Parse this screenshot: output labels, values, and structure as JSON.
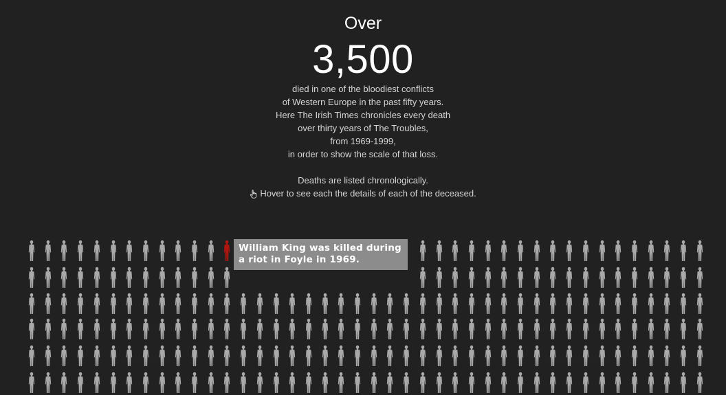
{
  "header": {
    "over": "Over",
    "count": "3,500",
    "description_lines": [
      "died in one of the bloodiest conflicts",
      "of Western Europe in the past fifty years.",
      "Here The Irish Times chronicles every death",
      "over thirty years of The Troubles,",
      "from 1969-1999,",
      "in order to show the scale of that loss."
    ],
    "listed_note": "Deaths are listed chronologically.",
    "hover_hint": "Hover to see each the details of each of the deceased."
  },
  "icons": {
    "hint": "pointing-hand-icon",
    "figure": "person-silhouette-icon"
  },
  "colors": {
    "background": "#212121",
    "figure": "#a9a9a9",
    "highlighted_figure": "#b0150f",
    "tooltip_bg": "#8c8c8c",
    "text": "#d6d6d6"
  },
  "tooltip": {
    "line1": "William King was killed during",
    "line2": "a riot in Foyle in 1969."
  }
}
